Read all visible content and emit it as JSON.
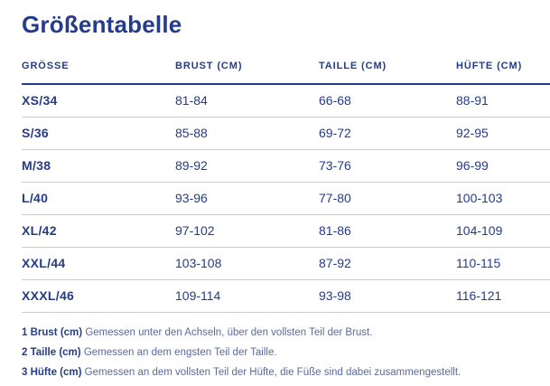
{
  "page": {
    "title": "Größentabelle"
  },
  "colors": {
    "navy": "#233c8b",
    "divider": "#c9cdda",
    "note_text": "#5a69a0",
    "background": "#ffffff"
  },
  "table": {
    "columns": [
      "GRÖSSE",
      "BRUST (CM)",
      "TAILLE (CM)",
      "HÜFTE (CM)"
    ],
    "rows": [
      {
        "size": "XS/34",
        "brust": "81-84",
        "taille": "66-68",
        "huefte": "88-91"
      },
      {
        "size": "S/36",
        "brust": "85-88",
        "taille": "69-72",
        "huefte": "92-95"
      },
      {
        "size": "M/38",
        "brust": "89-92",
        "taille": "73-76",
        "huefte": "96-99"
      },
      {
        "size": "L/40",
        "brust": "93-96",
        "taille": "77-80",
        "huefte": "100-103"
      },
      {
        "size": "XL/42",
        "brust": "97-102",
        "taille": "81-86",
        "huefte": "104-109"
      },
      {
        "size": "XXL/44",
        "brust": "103-108",
        "taille": "87-92",
        "huefte": "110-115"
      },
      {
        "size": "XXXL/46",
        "brust": "109-114",
        "taille": "93-98",
        "huefte": "116-121"
      }
    ]
  },
  "footnotes": [
    {
      "label": "1 Brust (cm)",
      "text": "Gemessen unter den Achseln, über den vollsten Teil der Brust."
    },
    {
      "label": "2 Taille (cm)",
      "text": "Gemessen an dem engsten Teil der Taille."
    },
    {
      "label": "3 Hüfte (cm)",
      "text": "Gemessen an dem vollsten Teil der Hüfte, die Füße sind dabei zusammengestellt."
    }
  ]
}
